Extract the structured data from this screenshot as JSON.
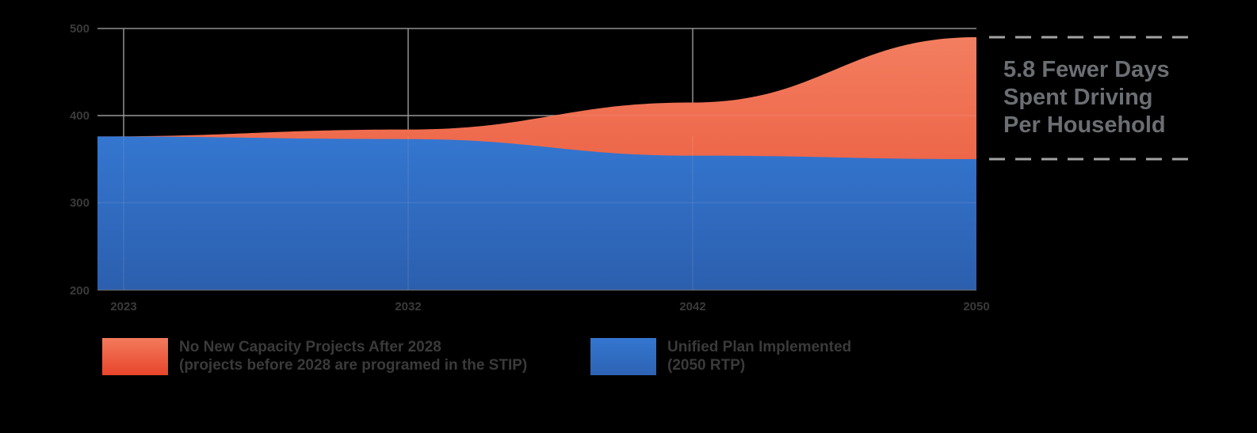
{
  "chart_data": {
    "type": "area",
    "x": [
      2023,
      2032,
      2042,
      2050
    ],
    "series": [
      {
        "name": "No New Capacity Projects After 2028",
        "values": [
          376,
          384,
          415,
          490
        ],
        "color": "#e8563a"
      },
      {
        "name": "Unified Plan Implemented",
        "values": [
          376,
          373,
          354,
          350
        ],
        "color": "#3470c4"
      }
    ],
    "ylim": [
      200,
      500
    ],
    "yticks": [
      200,
      300,
      400,
      500
    ],
    "xticks": [
      "2023",
      "2032",
      "2042",
      "2050"
    ],
    "title": "",
    "xlabel": "",
    "ylabel": "",
    "grid": true,
    "annotation": {
      "lines": [
        "5.8 Fewer Days",
        "Spent Driving",
        "Per Household"
      ],
      "top_value": 490,
      "bottom_value": 350
    }
  },
  "legend": [
    {
      "line1": "No New Capacity Projects After 2028",
      "line2": "(projects before 2028 are programed in the STIP)",
      "color_top": "#f27b5c",
      "color_bottom": "#e8452b"
    },
    {
      "line1": "Unified Plan Implemented",
      "line2": "(2050 RTP)",
      "color_top": "#3476d0",
      "color_bottom": "#2d63b4"
    }
  ]
}
